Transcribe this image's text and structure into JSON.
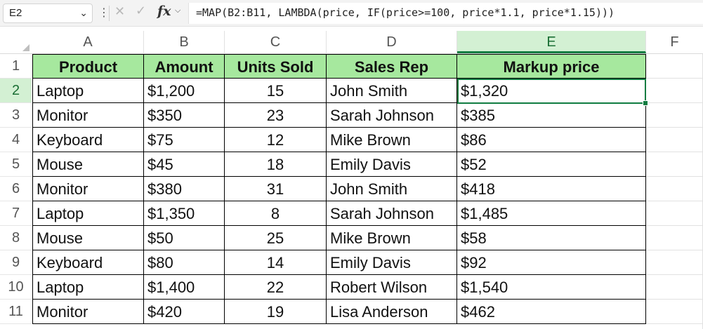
{
  "formula_bar": {
    "name_box": "E2",
    "more_icon": "⋮",
    "cancel_icon": "✕",
    "enter_icon": "✓",
    "fx_label": "fx",
    "formula": "=MAP(B2:B11, LAMBDA(price, IF(price>=100, price*1.1, price*1.15)))"
  },
  "columns": [
    "A",
    "B",
    "C",
    "D",
    "E",
    "F"
  ],
  "rows": [
    "1",
    "2",
    "3",
    "4",
    "5",
    "6",
    "7",
    "8",
    "9",
    "10",
    "11"
  ],
  "table": {
    "headers": [
      "Product",
      "Amount",
      "Units Sold",
      "Sales Rep",
      "Markup price"
    ],
    "data": [
      [
        "Laptop",
        "$1,200",
        "15",
        "John Smith",
        "$1,320"
      ],
      [
        "Monitor",
        "$350",
        "23",
        "Sarah Johnson",
        "$385"
      ],
      [
        "Keyboard",
        "$75",
        "12",
        "Mike Brown",
        "$86"
      ],
      [
        "Mouse",
        "$45",
        "18",
        "Emily Davis",
        "$52"
      ],
      [
        "Monitor",
        "$380",
        "31",
        "John Smith",
        "$418"
      ],
      [
        "Laptop",
        "$1,350",
        "8",
        "Sarah Johnson",
        "$1,485"
      ],
      [
        "Mouse",
        "$50",
        "25",
        "Mike Brown",
        "$58"
      ],
      [
        "Keyboard",
        "$80",
        "14",
        "Emily Davis",
        "$92"
      ],
      [
        "Laptop",
        "$1,400",
        "22",
        "Robert Wilson",
        "$1,540"
      ],
      [
        "Monitor",
        "$420",
        "19",
        "Lisa Anderson",
        "$462"
      ]
    ]
  },
  "colors": {
    "header_fill": "#a6e89e",
    "selection": "#107c41",
    "active_header": "#d3f0d3"
  },
  "active_cell": "E2"
}
